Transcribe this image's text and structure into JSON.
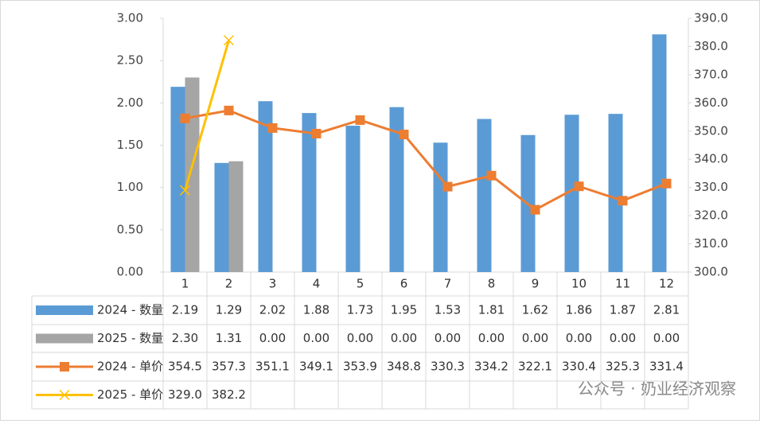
{
  "chart_data": {
    "type": "bar-line-table",
    "categories": [
      "1",
      "2",
      "3",
      "4",
      "5",
      "6",
      "7",
      "8",
      "9",
      "10",
      "11",
      "12"
    ],
    "series": [
      {
        "name": "2024 - 数量",
        "color": "#5B9BD5",
        "kind": "bar",
        "values": [
          2.19,
          1.29,
          2.02,
          1.88,
          1.73,
          1.95,
          1.53,
          1.81,
          1.62,
          1.86,
          1.87,
          2.81
        ],
        "value_labels": [
          "2.19",
          "1.29",
          "2.02",
          "1.88",
          "1.73",
          "1.95",
          "1.53",
          "1.81",
          "1.62",
          "1.86",
          "1.87",
          "2.81"
        ]
      },
      {
        "name": "2025 - 数量",
        "color": "#A5A5A5",
        "kind": "bar",
        "values": [
          2.3,
          1.31,
          0,
          0,
          0,
          0,
          0,
          0,
          0,
          0,
          0,
          0
        ],
        "value_labels": [
          "2.30",
          "1.31",
          "0.00",
          "0.00",
          "0.00",
          "0.00",
          "0.00",
          "0.00",
          "0.00",
          "0.00",
          "0.00",
          "0.00"
        ]
      },
      {
        "name": "2024 -  单价",
        "color": "#ED7D31",
        "kind": "line",
        "marker": "square",
        "axis": "y2",
        "values": [
          354.5,
          357.3,
          351.1,
          349.1,
          353.9,
          348.8,
          330.3,
          334.2,
          322.1,
          330.4,
          325.3,
          331.4
        ],
        "value_labels": [
          "354.5",
          "357.3",
          "351.1",
          "349.1",
          "353.9",
          "348.8",
          "330.3",
          "334.2",
          "322.1",
          "330.4",
          "325.3",
          "331.4"
        ]
      },
      {
        "name": "2025 -  单价",
        "color": "#FFC000",
        "kind": "line",
        "marker": "x",
        "axis": "y2",
        "values": [
          329.0,
          382.2,
          null,
          null,
          null,
          null,
          null,
          null,
          null,
          null,
          null,
          null
        ],
        "value_labels": [
          "329.0",
          "382.2",
          null,
          null,
          null,
          null,
          null,
          null,
          null,
          null,
          null,
          null
        ]
      }
    ],
    "ylim": [
      0,
      3
    ],
    "yticks": [
      {
        "value": 0,
        "label": "0.00"
      },
      {
        "value": 0.5,
        "label": "0.50"
      },
      {
        "value": 1,
        "label": "1.00"
      },
      {
        "value": 1.5,
        "label": "1.50"
      },
      {
        "value": 2,
        "label": "2.00"
      },
      {
        "value": 2.5,
        "label": "2.50"
      },
      {
        "value": 3,
        "label": "3.00"
      }
    ],
    "y2lim": [
      300,
      390
    ],
    "y2ticks": [
      {
        "value": 300,
        "label": "300.0"
      },
      {
        "value": 310,
        "label": "310.0"
      },
      {
        "value": 320,
        "label": "320.0"
      },
      {
        "value": 330,
        "label": "330.0"
      },
      {
        "value": 340,
        "label": "340.0"
      },
      {
        "value": 350,
        "label": "350.0"
      },
      {
        "value": 360,
        "label": "360.0"
      },
      {
        "value": 370,
        "label": "370.0"
      },
      {
        "value": 380,
        "label": "380.0"
      },
      {
        "value": 390,
        "label": "390.0"
      }
    ],
    "watermark": "公众号 · 奶业经济观察"
  }
}
